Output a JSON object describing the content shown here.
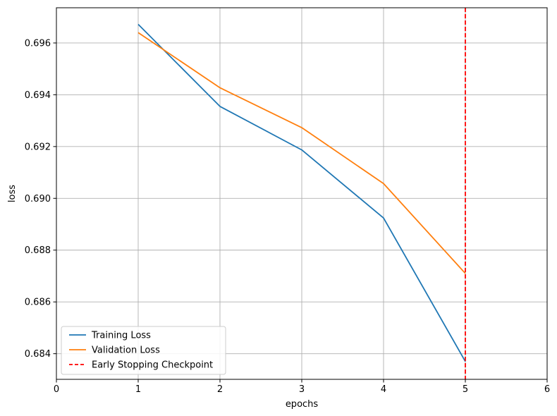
{
  "chart_data": {
    "type": "line",
    "title": "",
    "xlabel": "epochs",
    "ylabel": "loss",
    "xlim": [
      0,
      6
    ],
    "ylim": [
      0.68301,
      0.69736
    ],
    "xticks": [
      0,
      1,
      2,
      3,
      4,
      5,
      6
    ],
    "yticks": [
      0.684,
      0.686,
      0.688,
      0.69,
      0.692,
      0.694,
      0.696
    ],
    "ytick_labels": [
      "0.684",
      "0.686",
      "0.688",
      "0.690",
      "0.692",
      "0.694",
      "0.696"
    ],
    "grid": true,
    "legend_position": "lower-left",
    "series": [
      {
        "name": "Training Loss",
        "color": "#1f77b4",
        "style": "solid",
        "x": [
          1,
          2,
          3,
          4,
          5
        ],
        "y": [
          0.69672,
          0.69355,
          0.69187,
          0.68924,
          0.6837
        ]
      },
      {
        "name": "Validation Loss",
        "color": "#ff7f0e",
        "style": "solid",
        "x": [
          1,
          2,
          3,
          4,
          5
        ],
        "y": [
          0.6964,
          0.69427,
          0.69273,
          0.69057,
          0.6871
        ]
      }
    ],
    "vline": {
      "name": "Early Stopping Checkpoint",
      "x": 5,
      "color": "#ff0000",
      "style": "dashed"
    }
  }
}
